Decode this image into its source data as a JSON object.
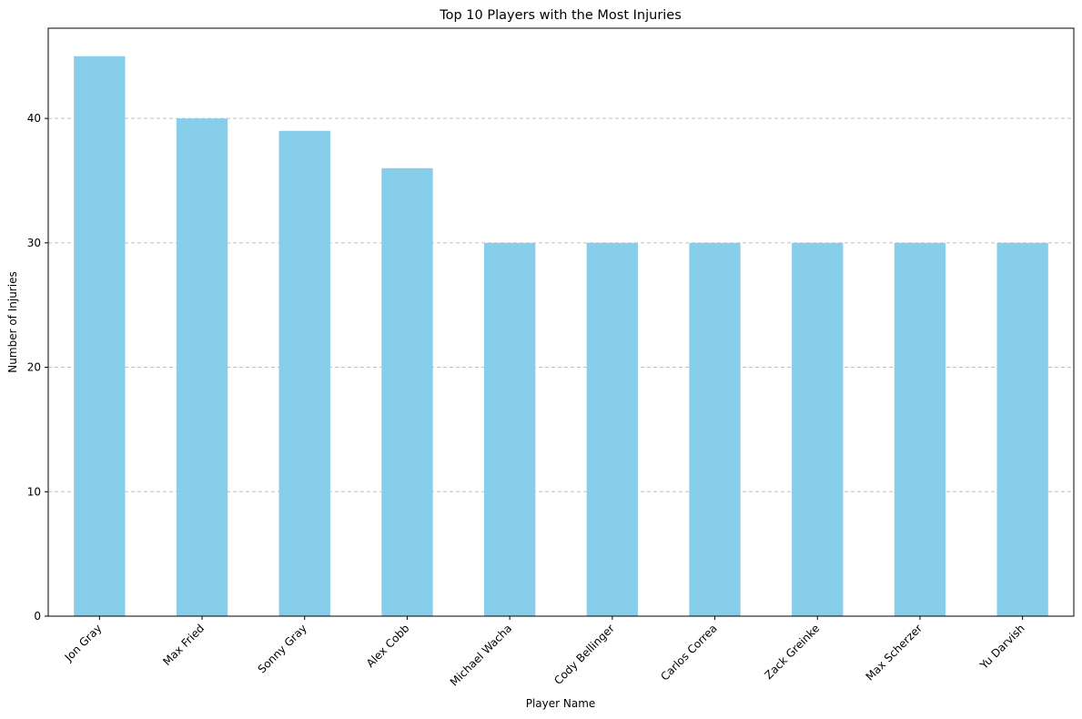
{
  "chart_data": {
    "type": "bar",
    "title": "Top 10 Players with the Most Injuries",
    "xlabel": "Player Name",
    "ylabel": "Number of Injuries",
    "categories": [
      "Jon Gray",
      "Max Fried",
      "Sonny Gray",
      "Alex Cobb",
      "Michael Wacha",
      "Cody Bellinger",
      "Carlos Correa",
      "Zack Greinke",
      "Max Scherzer",
      "Yu Darvish"
    ],
    "values": [
      45,
      40,
      39,
      36,
      30,
      30,
      30,
      30,
      30,
      30
    ],
    "ylim": [
      0,
      47.25
    ],
    "yticks": [
      0,
      10,
      20,
      30,
      40
    ],
    "grid": "y-dashed",
    "legend": "none",
    "colors": {
      "bar": "#87ceeb",
      "grid": "#c0c0c0",
      "axis": "#000000"
    }
  }
}
